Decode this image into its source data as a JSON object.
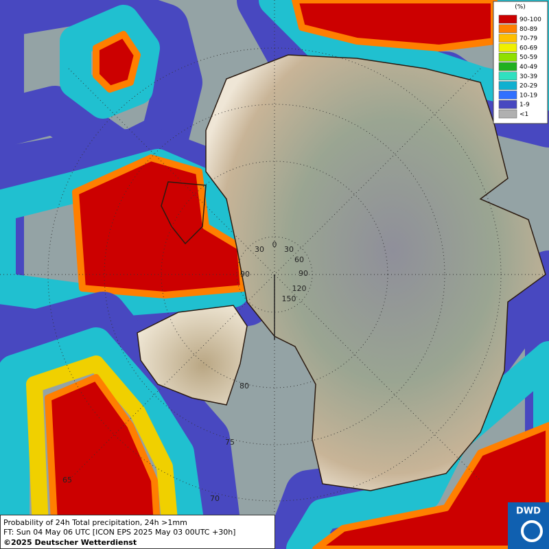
{
  "legend": {
    "title": "(%)",
    "items": [
      {
        "label": "90-100",
        "color": "#cc0000"
      },
      {
        "label": "80-89",
        "color": "#ff7f00"
      },
      {
        "label": "70-79",
        "color": "#ffbf00"
      },
      {
        "label": "60-69",
        "color": "#f0f000"
      },
      {
        "label": "50-59",
        "color": "#90e000"
      },
      {
        "label": "40-49",
        "color": "#20b020"
      },
      {
        "label": "30-39",
        "color": "#30e0c0"
      },
      {
        "label": "20-29",
        "color": "#10b0d0"
      },
      {
        "label": "10-19",
        "color": "#3070ff"
      },
      {
        "label": "1-9",
        "color": "#4848c0"
      },
      {
        "label": "<1",
        "color": "#b0b0b0"
      }
    ]
  },
  "graticule_labels": [
    "0",
    "30",
    "30",
    "60",
    "90",
    "90",
    "120",
    "150",
    "80",
    "75",
    "70",
    "65"
  ],
  "caption": {
    "line1": "Probability of 24h Total precipitation, 24h >1mm",
    "line2": "FT: Sun 04 May 06 UTC [ICON EPS 2025 May 03 00UTC +30h]",
    "line3": "©2025 Deutscher Wetterdienst"
  },
  "logo": "DWD"
}
